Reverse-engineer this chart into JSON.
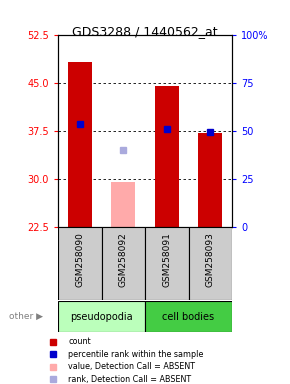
{
  "title": "GDS3288 / 1440562_at",
  "samples": [
    "GSM258090",
    "GSM258092",
    "GSM258091",
    "GSM258093"
  ],
  "bar_values": [
    48.2,
    29.5,
    44.5,
    37.1
  ],
  "bar_absent": [
    false,
    true,
    false,
    false
  ],
  "rank_values": [
    38.5,
    34.5,
    37.8,
    37.3
  ],
  "rank_absent": [
    false,
    true,
    false,
    false
  ],
  "ylim_left": [
    22.5,
    52.5
  ],
  "yticks_left": [
    22.5,
    30.0,
    37.5,
    45.0,
    52.5
  ],
  "ylim_right": [
    0,
    100
  ],
  "yticks_right": [
    0,
    25,
    50,
    75,
    100
  ],
  "bar_color": "#cc0000",
  "bar_absent_color": "#ffaaaa",
  "rank_color": "#0000cc",
  "rank_absent_color": "#aaaadd",
  "group_colors_pseudo": "#bbffbb",
  "group_colors_cell": "#44cc44",
  "label_bg": "#cccccc",
  "bar_width": 0.55,
  "bar_bottom": 22.5,
  "group_label_pseudo": "pseudopodia",
  "group_label_cell": "cell bodies",
  "legend_items": [
    {
      "color": "#cc0000",
      "label": "count"
    },
    {
      "color": "#0000cc",
      "label": "percentile rank within the sample"
    },
    {
      "color": "#ffaaaa",
      "label": "value, Detection Call = ABSENT"
    },
    {
      "color": "#aaaadd",
      "label": "rank, Detection Call = ABSENT"
    }
  ]
}
